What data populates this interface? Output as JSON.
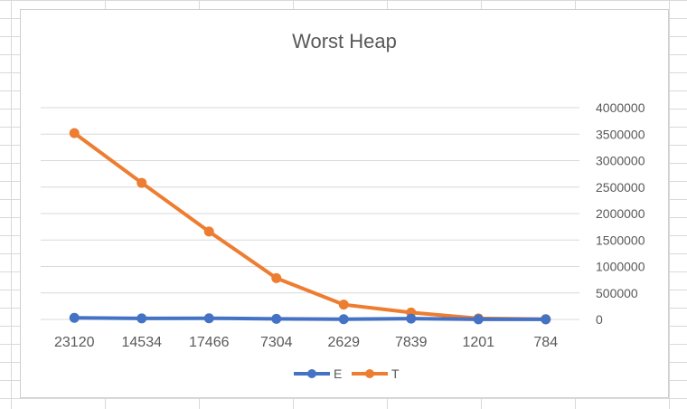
{
  "chart_data": {
    "type": "line",
    "title": "Worst Heap",
    "categories": [
      "23120",
      "14534",
      "17466",
      "7304",
      "2629",
      "7839",
      "1201",
      "784"
    ],
    "series": [
      {
        "name": "E",
        "color": "#4472C4",
        "values": [
          30000,
          20000,
          22000,
          10000,
          5000,
          15000,
          3000,
          1500
        ]
      },
      {
        "name": "T",
        "color": "#ED7D31",
        "values": [
          3520000,
          2580000,
          1660000,
          780000,
          280000,
          130000,
          20000,
          5000
        ]
      }
    ],
    "ylim": [
      0,
      4000000
    ],
    "yticks": [
      "4000000",
      "3500000",
      "3000000",
      "2500000",
      "2000000",
      "1500000",
      "1000000",
      "500000",
      "0"
    ],
    "ytick_values": [
      4000000,
      3500000,
      3000000,
      2500000,
      2000000,
      1500000,
      1000000,
      500000,
      0
    ],
    "grid": true,
    "legend_position": "bottom",
    "yaxis_position": "right"
  }
}
